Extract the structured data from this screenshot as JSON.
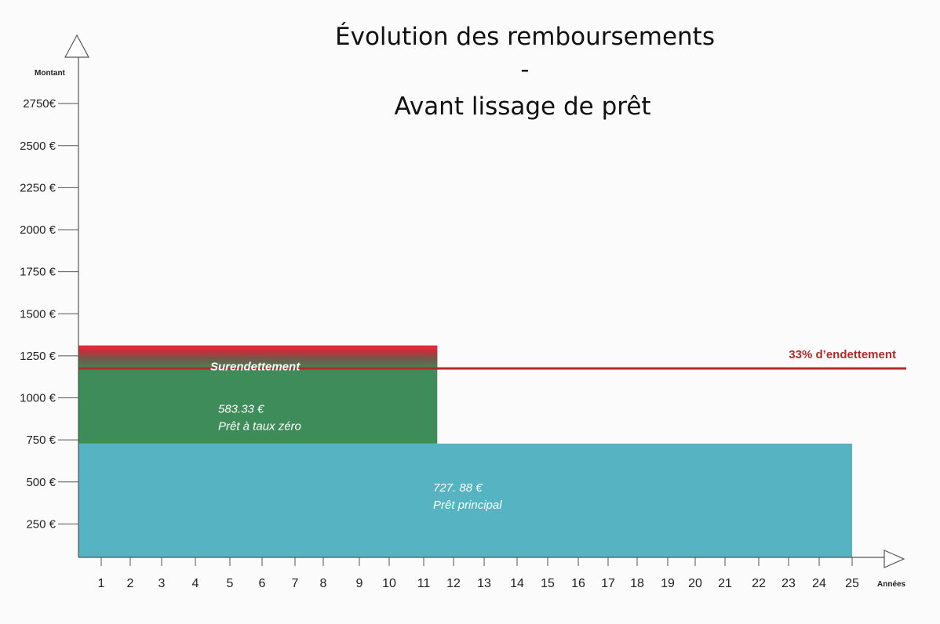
{
  "chart_data": {
    "type": "bar",
    "title_lines": [
      "Évolution des remboursements",
      "-",
      "Avant lissage de prêt"
    ],
    "ylabel": "Montant",
    "xlabel": "Années",
    "y_ticks": [
      {
        "value": 250,
        "label": "250 €"
      },
      {
        "value": 500,
        "label": "500 €"
      },
      {
        "value": 750,
        "label": "750 €"
      },
      {
        "value": 1000,
        "label": "1000 €"
      },
      {
        "value": 1250,
        "label": "1250 €"
      },
      {
        "value": 1500,
        "label": "1500 €"
      },
      {
        "value": 1750,
        "label": "1750 €"
      },
      {
        "value": 2000,
        "label": "2000 €"
      },
      {
        "value": 2250,
        "label": "2250 €"
      },
      {
        "value": 2500,
        "label": "2500 €"
      },
      {
        "value": 2750,
        "label": "2750€"
      }
    ],
    "x_ticks": [
      "1",
      "2",
      "3",
      "4",
      "5",
      "6",
      "7",
      "8",
      "9",
      "10",
      "11",
      "12",
      "13",
      "14",
      "15",
      "16",
      "17",
      "18",
      "19",
      "20",
      "21",
      "22",
      "23",
      "24",
      "25"
    ],
    "blocks": [
      {
        "id": "principal",
        "from_year": 0,
        "to_year": 25,
        "y_bottom": 0,
        "y_top": 727.88,
        "color": "#55b3c2",
        "value_label": "727. 88 €",
        "name_label": "Prêt principal"
      },
      {
        "id": "ptz",
        "from_year": 0,
        "to_year": 12,
        "y_bottom": 727.88,
        "y_top": 1311.21,
        "color": "#3e8c5a",
        "value_label": "583.33 €",
        "name_label": "Prêt à taux zéro"
      }
    ],
    "overdebt_label": "Surendettement",
    "overdebt_color": "#dd2f3d",
    "threshold": {
      "value": 1175,
      "label": "33% d’endettement",
      "color": "#b22a2a"
    }
  }
}
